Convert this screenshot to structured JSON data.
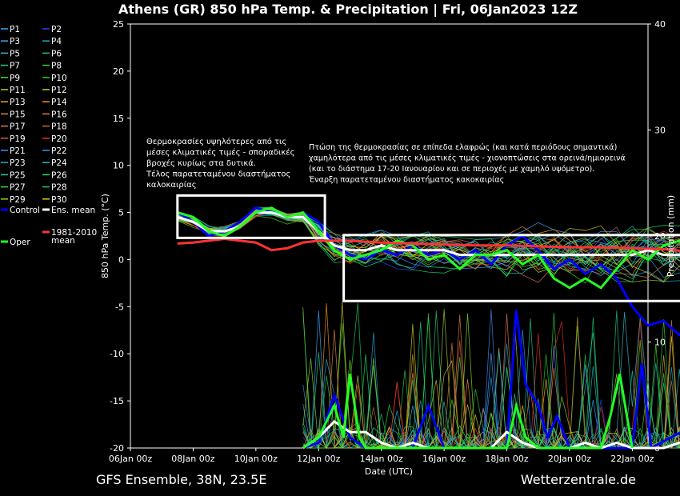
{
  "chart_data": {
    "type": "line",
    "title": "Athens  (GR)  850 hPa Temp. & Precipitation | Fri, 06Jan2023 12Z",
    "ylabel": "850 hPa Temp. (°C)",
    "y2label": "Precipitation (mm)",
    "xlabel": "Date (UTC)",
    "ylim": [
      -20,
      25
    ],
    "y2lim": [
      0,
      40
    ],
    "yticks": [
      -20,
      -15,
      -10,
      -5,
      0,
      5,
      10,
      15,
      20,
      25
    ],
    "y2ticks": [
      0,
      10,
      20,
      30,
      40
    ],
    "xticks": [
      "06Jan 00z",
      "08Jan 00z",
      "10Jan 00z",
      "12Jan 00z",
      "14Jan 00z",
      "16Jan 00z",
      "18Jan 00z",
      "20Jan 00z",
      "22Jan 00z"
    ],
    "xlim_days": [
      0,
      16.5
    ],
    "series": [
      {
        "name": "Control",
        "color": "#0000ff",
        "width": 3,
        "temp": [
          [
            1.5,
            5
          ],
          [
            2,
            4
          ],
          [
            2.5,
            2.5
          ],
          [
            3,
            3
          ],
          [
            3.5,
            4
          ],
          [
            4,
            5.5
          ],
          [
            4.5,
            5
          ],
          [
            5,
            4.5
          ],
          [
            5.5,
            5
          ],
          [
            6,
            4
          ],
          [
            6.5,
            1.5
          ],
          [
            7,
            0.5
          ],
          [
            7.5,
            0
          ],
          [
            8,
            1
          ],
          [
            8.5,
            0.5
          ],
          [
            9,
            1.5
          ],
          [
            9.5,
            0.5
          ],
          [
            10,
            1
          ],
          [
            10.5,
            0
          ],
          [
            11,
            1
          ],
          [
            11.5,
            -0.5
          ],
          [
            12,
            1.5
          ],
          [
            12.5,
            2.5
          ],
          [
            13,
            1
          ],
          [
            13.5,
            -1
          ],
          [
            14,
            0
          ],
          [
            14.5,
            -1.5
          ],
          [
            15,
            -0.5
          ],
          [
            15.5,
            -2
          ],
          [
            16,
            -5
          ],
          [
            16.5,
            -7
          ],
          [
            17,
            -6.5
          ],
          [
            17.5,
            -8
          ],
          [
            18,
            -6.5
          ],
          [
            18.5,
            -6
          ]
        ],
        "precip": [
          [
            5.5,
            0
          ],
          [
            6,
            0.5
          ],
          [
            6.5,
            5
          ],
          [
            7,
            1
          ],
          [
            7.5,
            0
          ],
          [
            9,
            0
          ],
          [
            9.5,
            4
          ],
          [
            10,
            0
          ],
          [
            12,
            0
          ],
          [
            12.3,
            13
          ],
          [
            12.6,
            6
          ],
          [
            13,
            4
          ],
          [
            13.3,
            1
          ],
          [
            13.6,
            3
          ],
          [
            14,
            0
          ],
          [
            15,
            0
          ],
          [
            16,
            0
          ],
          [
            16.3,
            8
          ],
          [
            16.6,
            0
          ],
          [
            18.5,
            3
          ]
        ]
      },
      {
        "name": "Ens. mean",
        "color": "#ffffff",
        "width": 3,
        "temp": [
          [
            1.5,
            4.5
          ],
          [
            2,
            4
          ],
          [
            2.5,
            3
          ],
          [
            3,
            3
          ],
          [
            3.5,
            3.5
          ],
          [
            4,
            5
          ],
          [
            4.5,
            5
          ],
          [
            5,
            4.5
          ],
          [
            5.5,
            4.5
          ],
          [
            6,
            3
          ],
          [
            6.5,
            1.5
          ],
          [
            7,
            1
          ],
          [
            7.5,
            1
          ],
          [
            8,
            1.5
          ],
          [
            8.5,
            1
          ],
          [
            9,
            1
          ],
          [
            9.5,
            1
          ],
          [
            10,
            1
          ],
          [
            10.5,
            0.5
          ],
          [
            11,
            0.5
          ],
          [
            11.5,
            0.5
          ],
          [
            12,
            0.5
          ],
          [
            12.5,
            0.5
          ],
          [
            13,
            0.5
          ],
          [
            13.5,
            0.5
          ],
          [
            14,
            0.5
          ],
          [
            14.5,
            0.5
          ],
          [
            15,
            0.5
          ],
          [
            15.5,
            0.5
          ],
          [
            16,
            0.5
          ],
          [
            16.5,
            1
          ],
          [
            17,
            0.5
          ],
          [
            17.5,
            0.5
          ],
          [
            18,
            0.5
          ],
          [
            18.5,
            0
          ]
        ],
        "precip": [
          [
            5.5,
            0
          ],
          [
            6,
            1
          ],
          [
            6.5,
            2.5
          ],
          [
            7,
            1.5
          ],
          [
            7.5,
            1.5
          ],
          [
            8,
            0.5
          ],
          [
            8.5,
            0
          ],
          [
            9,
            0.5
          ],
          [
            9.5,
            0
          ],
          [
            10,
            0
          ],
          [
            10.5,
            0
          ],
          [
            11,
            0
          ],
          [
            11.5,
            0
          ],
          [
            12,
            1.5
          ],
          [
            12.5,
            0.5
          ],
          [
            13,
            0
          ],
          [
            13.5,
            0
          ],
          [
            14,
            0
          ],
          [
            14.5,
            0.5
          ],
          [
            15,
            0
          ],
          [
            15.5,
            0.5
          ],
          [
            16,
            0
          ],
          [
            16.5,
            0
          ],
          [
            17,
            0
          ],
          [
            17.5,
            0.5
          ],
          [
            18,
            0.5
          ],
          [
            18.5,
            0.5
          ]
        ]
      },
      {
        "name": "Oper",
        "color": "#22ff22",
        "width": 3,
        "temp": [
          [
            1.5,
            5
          ],
          [
            2,
            4.5
          ],
          [
            2.5,
            3
          ],
          [
            3,
            2.5
          ],
          [
            3.5,
            3.5
          ],
          [
            4,
            5
          ],
          [
            4.5,
            5.5
          ],
          [
            5,
            4.5
          ],
          [
            5.5,
            5
          ],
          [
            6,
            3
          ],
          [
            6.5,
            1
          ],
          [
            7,
            0
          ],
          [
            7.5,
            0.5
          ],
          [
            8,
            1
          ],
          [
            8.5,
            2
          ],
          [
            9,
            1.5
          ],
          [
            9.5,
            0
          ],
          [
            10,
            0.5
          ],
          [
            10.5,
            -1
          ],
          [
            11,
            0.5
          ],
          [
            11.5,
            0.5
          ],
          [
            12,
            1
          ],
          [
            12.5,
            -0.5
          ],
          [
            13,
            0.5
          ],
          [
            13.5,
            -2
          ],
          [
            14,
            -3
          ],
          [
            14.5,
            -2
          ],
          [
            15,
            -3
          ],
          [
            15.5,
            -1
          ],
          [
            16,
            1
          ],
          [
            16.5,
            0
          ],
          [
            17,
            1.5
          ],
          [
            17.5,
            2
          ],
          [
            18,
            3
          ],
          [
            18.5,
            4
          ]
        ],
        "precip": [
          [
            5.5,
            0
          ],
          [
            6,
            1
          ],
          [
            6.5,
            4
          ],
          [
            6.8,
            1
          ],
          [
            7,
            7
          ],
          [
            7.3,
            1
          ],
          [
            7.5,
            0
          ],
          [
            12,
            0
          ],
          [
            12.3,
            4
          ],
          [
            12.6,
            1
          ],
          [
            13,
            0
          ],
          [
            15,
            0
          ],
          [
            15.3,
            3
          ],
          [
            15.6,
            7
          ],
          [
            16,
            0
          ]
        ]
      },
      {
        "name": "1981-2010 mean",
        "color": "#ff3333",
        "width": 3,
        "temp": [
          [
            1.5,
            1.7
          ],
          [
            2,
            1.8
          ],
          [
            3,
            2.2
          ],
          [
            3.5,
            2
          ],
          [
            4,
            1.8
          ],
          [
            4.5,
            1
          ],
          [
            5,
            1.2
          ],
          [
            5.5,
            1.8
          ],
          [
            6,
            2
          ],
          [
            6.5,
            2
          ],
          [
            7,
            2
          ],
          [
            8,
            1.8
          ],
          [
            9,
            1.7
          ],
          [
            10,
            1.6
          ],
          [
            11,
            1.5
          ],
          [
            12,
            1.5
          ],
          [
            13,
            1.4
          ],
          [
            14,
            1.3
          ],
          [
            15,
            1.3
          ],
          [
            16,
            1.2
          ],
          [
            17,
            1.1
          ],
          [
            18,
            0.8
          ],
          [
            18.5,
            0.5
          ]
        ]
      }
    ],
    "annotations": [
      {
        "lines": [
          "Θερμοκρασίες υψηλότερες από τις",
          "μέσες κλιματικές τιμές - σποραδικές",
          "βροχές κυρίως στα δυτικά.",
          "Τέλος παρατεταμένου διαστήματος",
          "καλοκαιρίας"
        ]
      },
      {
        "lines": [
          "Πτώση της θερμοκρασίας σε επίπεδα ελαφρώς (και κατά περιόδους σημαντικά)",
          "χαμηλότερα από τις μέσες κλιματικές τιμές - χιονοπτώσεις στα ορεινά/ημιορεινά",
          "(και το διάστημα 17-20 Ιανουαρίου και σε περιοχές με χαμηλό υψόμετρο).",
          "Έναρξη παρατεταμένου διαστήματος κακοκαιρίας"
        ]
      }
    ],
    "boxes": [
      {
        "x": [
          1.5,
          6.2
        ],
        "y": [
          2.3,
          6.8
        ]
      },
      {
        "x": [
          6.8,
          18.2
        ],
        "y": [
          -4.4,
          2.6
        ]
      }
    ]
  },
  "legend": [
    {
      "label": "P1",
      "color": "#33aaff"
    },
    {
      "label": "P2",
      "color": "#2244ff"
    },
    {
      "label": "P3",
      "color": "#44aaff"
    },
    {
      "label": "P4",
      "color": "#22aadd"
    },
    {
      "label": "P5",
      "color": "#33bbcc"
    },
    {
      "label": "P6",
      "color": "#22cc66"
    },
    {
      "label": "P7",
      "color": "#22cc88"
    },
    {
      "label": "P8",
      "color": "#33cc44"
    },
    {
      "label": "P9",
      "color": "#44dd22"
    },
    {
      "label": "P10",
      "color": "#22cc33"
    },
    {
      "label": "P11",
      "color": "#aacc33"
    },
    {
      "label": "P12",
      "color": "#cccc33"
    },
    {
      "label": "P13",
      "color": "#ddaa33"
    },
    {
      "label": "P14",
      "color": "#ee9922"
    },
    {
      "label": "P15",
      "color": "#dd8844"
    },
    {
      "label": "P16",
      "color": "#cc8833"
    },
    {
      "label": "P17",
      "color": "#dd7755"
    },
    {
      "label": "P18",
      "color": "#cc6633"
    },
    {
      "label": "P19",
      "color": "#dd5544"
    },
    {
      "label": "P20",
      "color": "#ee3322"
    },
    {
      "label": "P21",
      "color": "#4488ff"
    },
    {
      "label": "P22",
      "color": "#3399ee"
    },
    {
      "label": "P23",
      "color": "#22aacc"
    },
    {
      "label": "P24",
      "color": "#22bbbb"
    },
    {
      "label": "P25",
      "color": "#22cc99"
    },
    {
      "label": "P26",
      "color": "#22dd66"
    },
    {
      "label": "P27",
      "color": "#33dd33"
    },
    {
      "label": "P28",
      "color": "#22cc55"
    },
    {
      "label": "P29",
      "color": "#88dd22"
    },
    {
      "label": "P30",
      "color": "#ddcc22"
    },
    {
      "label": "Control",
      "color": "#0000ff",
      "thick": true
    },
    {
      "label": "Ens. mean",
      "color": "#ffffff",
      "thick": true
    },
    {
      "label": "Oper",
      "color": "#22ff22",
      "thick": true
    },
    {
      "label": "1981-2010\nmean",
      "color": "#ff3333",
      "thick": true
    }
  ],
  "footer": {
    "left": "GFS Ensemble, 38N, 23.5E",
    "right": "Wetterzentrale.de"
  }
}
